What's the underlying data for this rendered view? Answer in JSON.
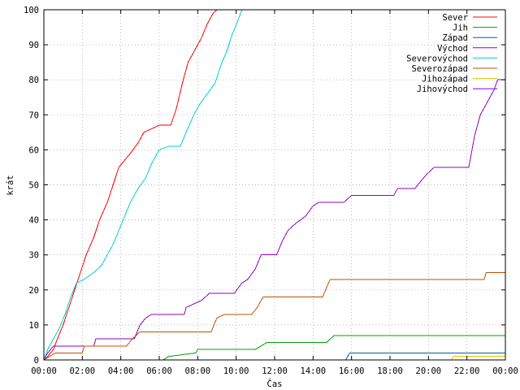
{
  "chart_data": {
    "type": "line",
    "xlabel": "Čas",
    "ylabel": "krát",
    "xlim": [
      0,
      24
    ],
    "ylim": [
      0,
      100
    ],
    "grid": true,
    "legend_position": "top-right",
    "x_ticks": [
      {
        "value": 0,
        "label": "00:00"
      },
      {
        "value": 2,
        "label": "02:00"
      },
      {
        "value": 4,
        "label": "04:00"
      },
      {
        "value": 6,
        "label": "06:00"
      },
      {
        "value": 8,
        "label": "08:00"
      },
      {
        "value": 10,
        "label": "10:00"
      },
      {
        "value": 12,
        "label": "12:00"
      },
      {
        "value": 14,
        "label": "14:00"
      },
      {
        "value": 16,
        "label": "16:00"
      },
      {
        "value": 18,
        "label": "18:00"
      },
      {
        "value": 20,
        "label": "20:00"
      },
      {
        "value": 22,
        "label": "22:00"
      },
      {
        "value": 24,
        "label": "00:00"
      }
    ],
    "y_ticks": [
      0,
      10,
      20,
      30,
      40,
      50,
      60,
      70,
      80,
      90,
      100
    ],
    "series": [
      {
        "name": "Sever",
        "color": "#ff0000",
        "points": [
          [
            0,
            0
          ],
          [
            0.2,
            1
          ],
          [
            0.5,
            3
          ],
          [
            0.7,
            6
          ],
          [
            1.0,
            10
          ],
          [
            1.3,
            15
          ],
          [
            1.6,
            20
          ],
          [
            1.9,
            25
          ],
          [
            2.2,
            30
          ],
          [
            2.6,
            35
          ],
          [
            2.9,
            40
          ],
          [
            3.3,
            45
          ],
          [
            3.6,
            50
          ],
          [
            3.9,
            55
          ],
          [
            4.2,
            57
          ],
          [
            4.5,
            59
          ],
          [
            4.9,
            62
          ],
          [
            5.2,
            65
          ],
          [
            5.6,
            66
          ],
          [
            6.0,
            67
          ],
          [
            6.6,
            67
          ],
          [
            6.9,
            72
          ],
          [
            7.2,
            79
          ],
          [
            7.5,
            85
          ],
          [
            7.9,
            89
          ],
          [
            8.2,
            92
          ],
          [
            8.5,
            96
          ],
          [
            8.8,
            99
          ],
          [
            9.0,
            100
          ]
        ]
      },
      {
        "name": "Jih",
        "color": "#00a000",
        "points": [
          [
            6.2,
            0
          ],
          [
            6.5,
            1
          ],
          [
            7.9,
            2
          ],
          [
            8.0,
            3
          ],
          [
            11.0,
            3
          ],
          [
            11.3,
            4
          ],
          [
            11.6,
            5
          ],
          [
            14.7,
            5
          ],
          [
            14.9,
            6
          ],
          [
            15.1,
            7
          ],
          [
            24,
            7
          ]
        ]
      },
      {
        "name": "Západ",
        "color": "#0060a0",
        "points": [
          [
            15.7,
            0
          ],
          [
            15.9,
            2
          ],
          [
            24,
            2
          ]
        ]
      },
      {
        "name": "Východ",
        "color": "#9000c0",
        "points": [
          [
            0,
            0
          ],
          [
            0.2,
            2
          ],
          [
            0.5,
            4
          ],
          [
            2.6,
            4
          ],
          [
            2.7,
            6
          ],
          [
            4.7,
            6
          ],
          [
            5.0,
            10
          ],
          [
            5.3,
            12
          ],
          [
            5.6,
            13
          ],
          [
            7.3,
            13
          ],
          [
            7.4,
            15
          ],
          [
            8.2,
            17
          ],
          [
            8.6,
            19
          ],
          [
            9.9,
            19
          ],
          [
            10.3,
            22
          ],
          [
            10.6,
            23
          ],
          [
            11.0,
            26
          ],
          [
            11.3,
            30
          ],
          [
            12.1,
            30
          ],
          [
            12.4,
            34
          ],
          [
            12.7,
            37
          ],
          [
            13.1,
            39
          ],
          [
            13.6,
            41
          ],
          [
            14.0,
            44
          ],
          [
            14.3,
            45
          ],
          [
            15.6,
            45
          ],
          [
            16.0,
            47
          ],
          [
            18.2,
            47
          ],
          [
            18.4,
            49
          ],
          [
            19.3,
            49
          ],
          [
            19.6,
            51
          ],
          [
            19.9,
            53
          ],
          [
            20.3,
            55
          ],
          [
            22.1,
            55
          ],
          [
            22.4,
            64
          ],
          [
            22.7,
            70
          ],
          [
            23.0,
            73
          ],
          [
            23.4,
            77
          ],
          [
            23.6,
            80
          ],
          [
            24,
            80
          ]
        ]
      },
      {
        "name": "Severovýchod",
        "color": "#00d0d0",
        "points": [
          [
            0,
            0
          ],
          [
            0.2,
            3
          ],
          [
            0.5,
            6
          ],
          [
            0.8,
            9
          ],
          [
            1.1,
            13
          ],
          [
            1.4,
            18
          ],
          [
            1.7,
            22
          ],
          [
            2.1,
            23
          ],
          [
            2.6,
            25
          ],
          [
            3.0,
            27
          ],
          [
            3.3,
            30
          ],
          [
            3.6,
            33
          ],
          [
            3.9,
            37
          ],
          [
            4.2,
            41
          ],
          [
            4.5,
            45
          ],
          [
            4.9,
            49
          ],
          [
            5.3,
            52
          ],
          [
            5.6,
            56
          ],
          [
            6.0,
            60
          ],
          [
            6.5,
            61
          ],
          [
            7.1,
            61
          ],
          [
            7.4,
            65
          ],
          [
            7.8,
            70
          ],
          [
            8.1,
            73
          ],
          [
            8.5,
            76
          ],
          [
            8.9,
            79
          ],
          [
            9.2,
            84
          ],
          [
            9.5,
            88
          ],
          [
            9.8,
            93
          ],
          [
            10.1,
            97
          ],
          [
            10.3,
            100
          ]
        ]
      },
      {
        "name": "Severozápad",
        "color": "#c05000",
        "points": [
          [
            0,
            0
          ],
          [
            0.3,
            1
          ],
          [
            0.6,
            2
          ],
          [
            2.0,
            2
          ],
          [
            2.1,
            4
          ],
          [
            4.3,
            4
          ],
          [
            4.6,
            6
          ],
          [
            5.0,
            8
          ],
          [
            8.7,
            8
          ],
          [
            9.0,
            12
          ],
          [
            9.4,
            13
          ],
          [
            10.8,
            13
          ],
          [
            11.1,
            15
          ],
          [
            11.4,
            18
          ],
          [
            14.5,
            18
          ],
          [
            14.8,
            22
          ],
          [
            14.9,
            23
          ],
          [
            22.9,
            23
          ],
          [
            23.0,
            25
          ],
          [
            24,
            25
          ]
        ]
      },
      {
        "name": "Jihozápad",
        "color": "#e0c000",
        "points": [
          [
            21.2,
            0
          ],
          [
            21.3,
            1
          ],
          [
            24,
            1
          ]
        ]
      },
      {
        "name": "Jihovýchod",
        "color": "#8000ff",
        "points": []
      }
    ]
  }
}
